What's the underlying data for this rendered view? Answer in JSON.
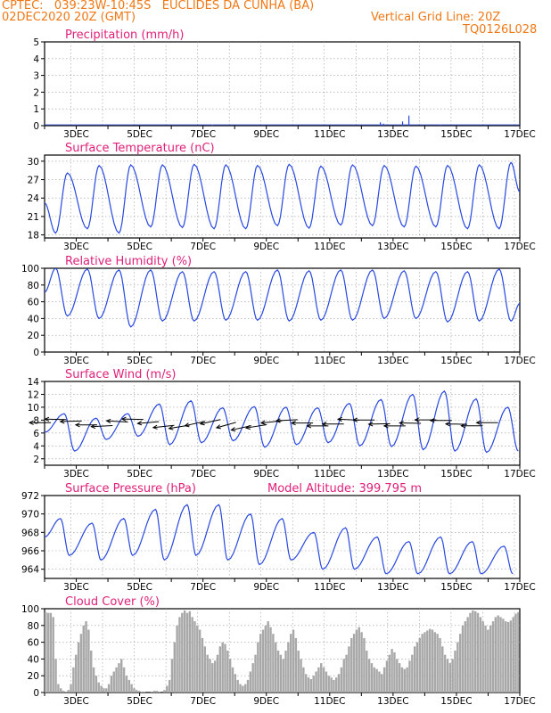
{
  "header": {
    "line1_left": "CPTEC:   039:23W-10:45S   EUCLIDES DA CUNHA (BA)",
    "line2_left": "02DEC2020 20Z (GMT)",
    "line2_right": "Vertical Grid Line: 20Z",
    "line3_right": "TQ0126L028"
  },
  "colors": {
    "header": "#f07814",
    "title": "#e0207a",
    "line": "#2848e0",
    "wind_vector": "#000000",
    "cloud_bar": "#a8a8a8",
    "grid": "#9a9a9a"
  },
  "chart_data": [
    {
      "id": "precip",
      "type": "bar",
      "title": "Precipitation (mm/h)",
      "xlabel": "",
      "ylabel": "",
      "x_ticks": [
        "3DEC",
        "5DEC",
        "7DEC",
        "9DEC",
        "11DEC",
        "13DEC",
        "15DEC",
        "17DEC"
      ],
      "ylim": [
        0,
        5
      ],
      "y_ticks": [
        "0",
        "1",
        "2",
        "3",
        "4",
        "5"
      ],
      "grid": true,
      "values": [
        {
          "day": 3.0,
          "value": 0.05
        },
        {
          "day": 7.3,
          "value": 0.03
        },
        {
          "day": 12.6,
          "value": 0.2
        },
        {
          "day": 12.7,
          "value": 0.12
        },
        {
          "day": 13.3,
          "value": 0.25
        },
        {
          "day": 13.5,
          "value": 0.6
        },
        {
          "day": 14.5,
          "value": 0.04
        }
      ]
    },
    {
      "id": "temp",
      "type": "line",
      "title": "Surface Temperature (nC)",
      "xlabel": "",
      "ylabel": "",
      "x_ticks": [
        "3DEC",
        "5DEC",
        "7DEC",
        "9DEC",
        "11DEC",
        "13DEC",
        "15DEC",
        "17DEC"
      ],
      "ylim": [
        17.5,
        31
      ],
      "y_ticks": [
        "18",
        "21",
        "24",
        "27",
        "30"
      ],
      "grid": true,
      "daily_max": [
        28.1,
        29.3,
        29.4,
        29.4,
        29.5,
        29.4,
        29.3,
        29.5,
        29.2,
        29.4,
        29.3,
        29.2,
        29.3,
        29.4,
        29.8
      ],
      "daily_min": [
        18.3,
        19.0,
        18.3,
        19.3,
        19.2,
        19.0,
        19.0,
        19.5,
        19.1,
        19.6,
        19.5,
        19.3,
        19.3,
        19.0,
        19.0
      ],
      "end_value": 25.0
    },
    {
      "id": "rh",
      "type": "line",
      "title": "Relative Humidity (%)",
      "xlabel": "",
      "ylabel": "",
      "x_ticks": [
        "3DEC",
        "5DEC",
        "7DEC",
        "9DEC",
        "11DEC",
        "13DEC",
        "15DEC",
        "17DEC"
      ],
      "ylim": [
        0,
        100
      ],
      "y_ticks": [
        "0",
        "20",
        "40",
        "60",
        "80",
        "100"
      ],
      "grid": true,
      "daily_max": [
        100,
        99,
        98,
        98,
        96,
        96,
        96,
        98,
        97,
        98,
        98,
        97,
        96,
        96,
        99
      ],
      "daily_min": [
        43,
        40,
        30,
        37,
        37,
        38,
        38,
        37,
        38,
        38,
        40,
        40,
        36,
        37,
        37
      ],
      "end_value": 58
    },
    {
      "id": "wind",
      "type": "line",
      "title": "Surface Wind (m/s)",
      "xlabel": "",
      "ylabel": "",
      "x_ticks": [
        "3DEC",
        "5DEC",
        "7DEC",
        "9DEC",
        "11DEC",
        "13DEC",
        "15DEC",
        "17DEC"
      ],
      "ylim": [
        1,
        14
      ],
      "y_ticks": [
        "2",
        "4",
        "6",
        "8",
        "10",
        "12",
        "14"
      ],
      "grid": true,
      "daily_max": [
        9.0,
        8.3,
        9.0,
        10.5,
        11.0,
        9.9,
        10.1,
        10.0,
        9.9,
        10.6,
        11.2,
        12.0,
        12.5,
        11.3,
        10.0
      ],
      "daily_min": [
        3.2,
        5.0,
        5.5,
        4.2,
        4.5,
        4.8,
        3.8,
        4.2,
        4.5,
        4.0,
        3.9,
        3.4,
        3.2,
        3.0,
        3.2
      ],
      "vectors_note": "wind direction arrows, mostly from the east",
      "vector_dir_deg": [
        180,
        178,
        182,
        180,
        185,
        175,
        178,
        188,
        190,
        195,
        200,
        200,
        205,
        200,
        195,
        190,
        185,
        180,
        180,
        180,
        175,
        180,
        182,
        180,
        178,
        180,
        180,
        178,
        180,
        180
      ]
    },
    {
      "id": "pres",
      "type": "line",
      "title": "Surface Pressure (hPa)",
      "annotation": "Model Altitude: 399.795 m",
      "xlabel": "",
      "ylabel": "",
      "x_ticks": [
        "3DEC",
        "5DEC",
        "7DEC",
        "9DEC",
        "11DEC",
        "13DEC",
        "15DEC",
        "17DEC"
      ],
      "ylim": [
        963,
        972
      ],
      "y_ticks": [
        "964",
        "966",
        "968",
        "970",
        "972"
      ],
      "grid": true,
      "daily_max": [
        969.5,
        969.0,
        969.5,
        970.5,
        971.0,
        971.0,
        970.0,
        969.5,
        968.0,
        968.5,
        967.5,
        967.0,
        967.5,
        967.0,
        966.5
      ],
      "daily_min": [
        965.5,
        965.0,
        965.5,
        965.0,
        965.5,
        965.0,
        964.5,
        965.0,
        964.0,
        964.0,
        963.5,
        963.5,
        963.5,
        963.5,
        963.5
      ]
    },
    {
      "id": "cloud",
      "type": "bar",
      "title": "Cloud Cover (%)",
      "xlabel": "",
      "ylabel": "",
      "x_ticks": [
        "3DEC",
        "5DEC",
        "7DEC",
        "9DEC",
        "11DEC",
        "13DEC",
        "15DEC",
        "17DEC"
      ],
      "ylim": [
        0,
        100
      ],
      "y_ticks": [
        "0",
        "20",
        "40",
        "60",
        "80",
        "100"
      ],
      "grid": true,
      "values": [
        96,
        95,
        95,
        90,
        40,
        10,
        5,
        2,
        1,
        3,
        10,
        30,
        45,
        60,
        70,
        80,
        85,
        75,
        50,
        30,
        20,
        12,
        8,
        5,
        5,
        10,
        20,
        25,
        30,
        35,
        40,
        30,
        20,
        15,
        10,
        5,
        3,
        2,
        1,
        1,
        0,
        0,
        1,
        2,
        2,
        1,
        0,
        3,
        8,
        15,
        40,
        60,
        80,
        90,
        95,
        98,
        95,
        97,
        90,
        85,
        80,
        75,
        65,
        55,
        45,
        40,
        35,
        38,
        45,
        55,
        60,
        58,
        50,
        40,
        30,
        22,
        15,
        10,
        8,
        10,
        15,
        25,
        35,
        45,
        60,
        70,
        75,
        80,
        85,
        78,
        70,
        60,
        50,
        45,
        40,
        50,
        60,
        70,
        75,
        65,
        50,
        40,
        30,
        22,
        18,
        16,
        20,
        25,
        30,
        35,
        30,
        25,
        20,
        18,
        15,
        18,
        22,
        30,
        40,
        45,
        55,
        65,
        70,
        75,
        78,
        72,
        65,
        50,
        40,
        35,
        30,
        28,
        25,
        22,
        30,
        38,
        45,
        52,
        48,
        40,
        35,
        30,
        28,
        30,
        38,
        45,
        55,
        60,
        65,
        70,
        72,
        74,
        76,
        75,
        72,
        70,
        65,
        55,
        45,
        40,
        35,
        40,
        50,
        60,
        70,
        80,
        85,
        90,
        95,
        98,
        97,
        95,
        90,
        85,
        80,
        75,
        80,
        85,
        90,
        92,
        90,
        88,
        85,
        84,
        86,
        90,
        94,
        96
      ]
    }
  ]
}
